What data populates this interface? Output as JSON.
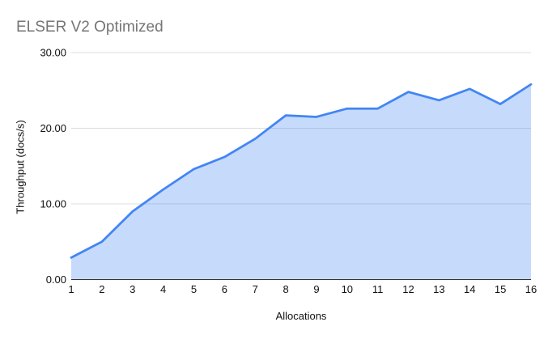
{
  "colors": {
    "background": "#ffffff",
    "title_text": "#757575",
    "axis_text": "#111111",
    "gridline": "#dcdcdc",
    "axis_line": "#333333",
    "series_line": "#4285f4",
    "series_fill": "rgba(66,133,244,0.30)"
  },
  "chart_data": {
    "type": "area",
    "title": "ELSER V2 Optimized",
    "xlabel": "Allocations",
    "ylabel": "Throughput (docs/s)",
    "categories": [
      "1",
      "2",
      "3",
      "4",
      "5",
      "6",
      "7",
      "8",
      "9",
      "10",
      "11",
      "12",
      "13",
      "14",
      "15",
      "16"
    ],
    "series": [
      {
        "name": "Throughput (docs/s)",
        "values": [
          2.9,
          5.0,
          9.0,
          11.9,
          14.6,
          16.2,
          18.6,
          21.7,
          21.5,
          22.6,
          22.6,
          24.8,
          23.7,
          25.2,
          23.2,
          25.8
        ]
      }
    ],
    "ylim": [
      0,
      30
    ],
    "yticks": [
      0,
      10,
      20,
      30
    ],
    "ytick_labels": [
      "0.00",
      "10.00",
      "20.00",
      "30.00"
    ],
    "grid": "horizontal",
    "legend": "none"
  }
}
